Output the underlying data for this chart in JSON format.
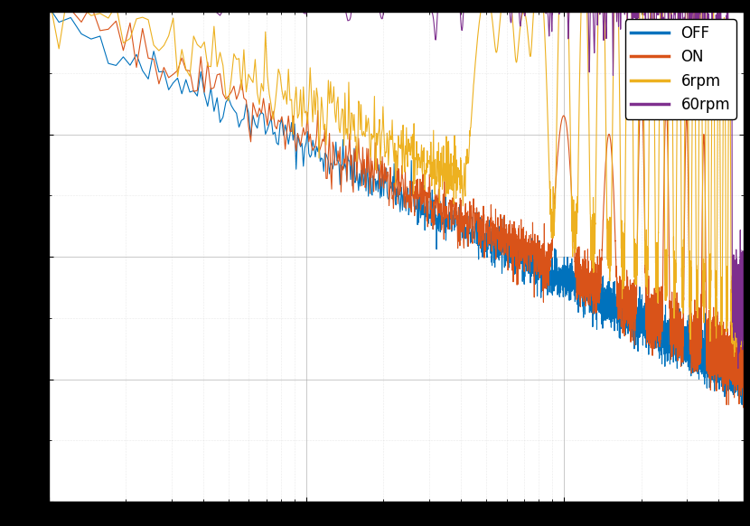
{
  "title": "",
  "xlabel": "",
  "ylabel": "",
  "xlim": [
    1,
    500
  ],
  "ylim": [
    -160,
    -80
  ],
  "legend_labels": [
    "OFF",
    "ON",
    "6rpm",
    "60rpm"
  ],
  "line_colors": [
    "#0072BD",
    "#D95319",
    "#EDB120",
    "#7E2F8E"
  ],
  "grid_color": "#b0b0b0",
  "bg_color": "#ffffff",
  "fig_bg": "#000000",
  "legend_fontsize": 12,
  "tick_fontsize": 11,
  "seed": 42,
  "fs": 1000,
  "n_fft": 8192
}
